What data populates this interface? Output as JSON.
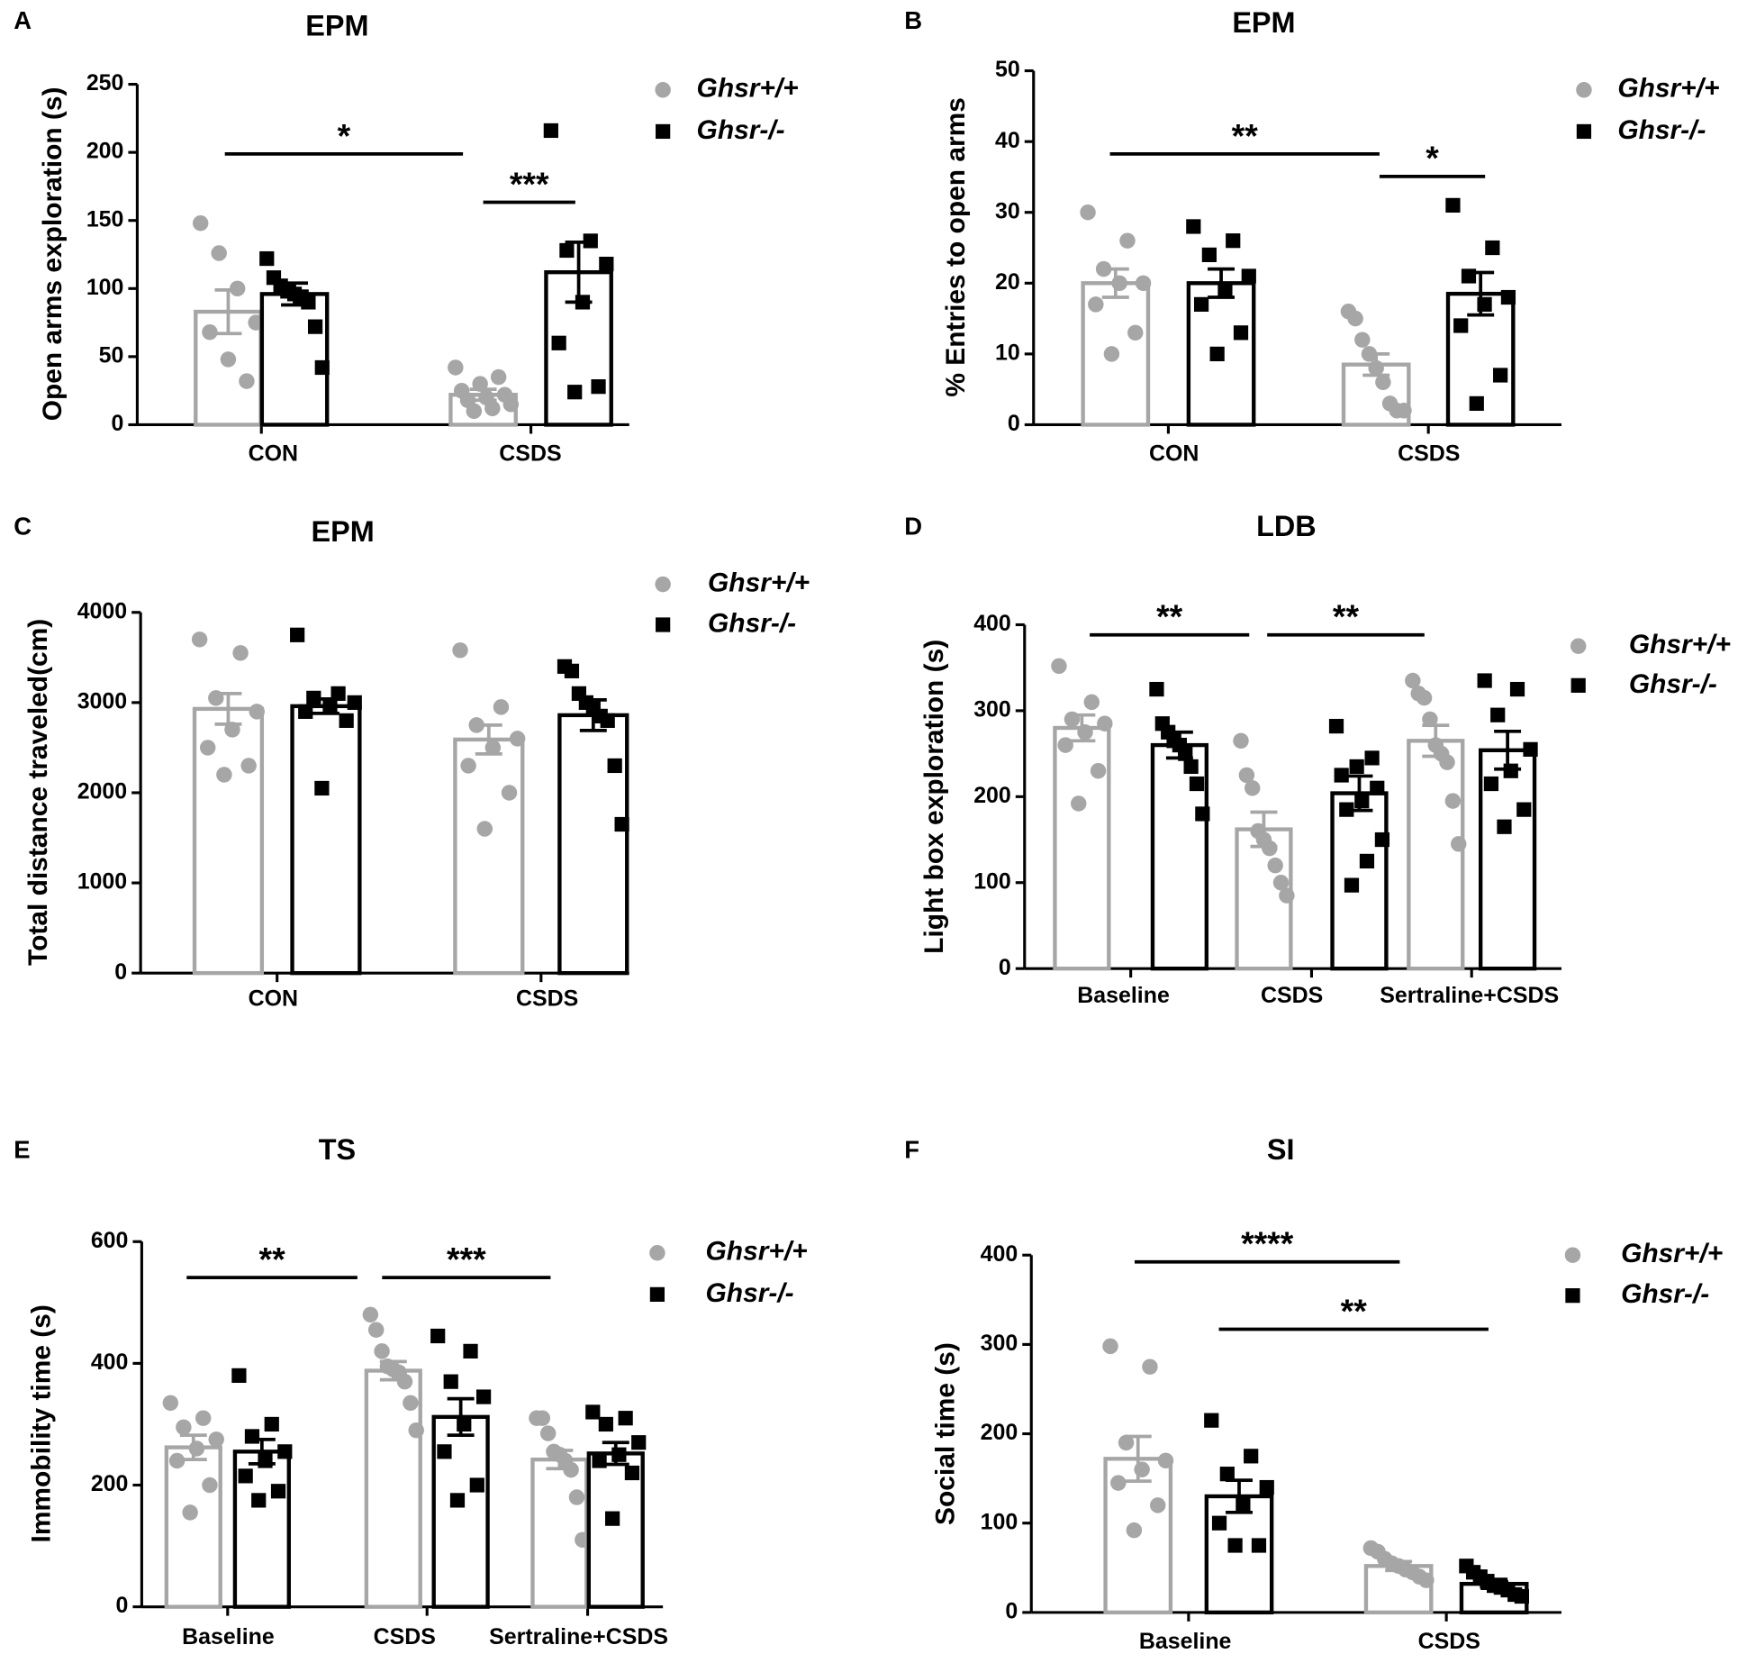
{
  "chart_data": [
    {
      "panel": "A",
      "type": "bar",
      "title": "EPM",
      "y_label": "Open arms exploration (s)",
      "categories": [
        "CON",
        "CSDS"
      ],
      "series": [
        {
          "name": "Ghsr+/+",
          "color": "#a6a6a6",
          "values": [
            83,
            22
          ],
          "errors": [
            16,
            4
          ],
          "points": [
            [
              148,
              126,
              100,
              75,
              68,
              48,
              32
            ],
            [
              42,
              35,
              30,
              25,
              22,
              20,
              18,
              15,
              12,
              10
            ]
          ]
        },
        {
          "name": "Ghsr-/-",
          "color": "#000000",
          "values": [
            96,
            112
          ],
          "errors": [
            8,
            22
          ],
          "points": [
            [
              122,
              108,
              102,
              98,
              96,
              94,
              90,
              72,
              42
            ],
            [
              216,
              135,
              128,
              118,
              90,
              60,
              28,
              24
            ]
          ]
        }
      ],
      "ylim": [
        0,
        250
      ],
      "yticks": [
        0,
        50,
        100,
        150,
        200,
        250
      ],
      "annotations": [
        "*",
        "***"
      ]
    },
    {
      "panel": "B",
      "type": "bar",
      "title": "EPM",
      "y_label": "% Entries to open arms",
      "categories": [
        "CON",
        "CSDS"
      ],
      "series": [
        {
          "name": "Ghsr+/+",
          "color": "#a6a6a6",
          "values": [
            20,
            8.5
          ],
          "errors": [
            2,
            1.5
          ],
          "points": [
            [
              30,
              26,
              22,
              20,
              20,
              17,
              13,
              10
            ],
            [
              16,
              15,
              12,
              10,
              8,
              6,
              3,
              2,
              2
            ]
          ]
        },
        {
          "name": "Ghsr-/-",
          "color": "#000000",
          "values": [
            20,
            18.5
          ],
          "errors": [
            2,
            3
          ],
          "points": [
            [
              28,
              26,
              24,
              21,
              19,
              17,
              13,
              10
            ],
            [
              31,
              25,
              21,
              18,
              17,
              14,
              7,
              3
            ]
          ]
        }
      ],
      "ylim": [
        0,
        50
      ],
      "yticks": [
        0,
        10,
        20,
        30,
        40,
        50
      ],
      "annotations": [
        "**",
        "*"
      ]
    },
    {
      "panel": "C",
      "type": "bar",
      "title": "EPM",
      "y_label": "Total distance traveled(cm)",
      "categories": [
        "CON",
        "CSDS"
      ],
      "series": [
        {
          "name": "Ghsr+/+",
          "color": "#a6a6a6",
          "values": [
            2930,
            2590
          ],
          "errors": [
            170,
            160
          ],
          "points": [
            [
              3700,
              3550,
              3050,
              2900,
              2700,
              2500,
              2300,
              2200
            ],
            [
              3580,
              2950,
              2750,
              2600,
              2500,
              2300,
              2000,
              1600
            ]
          ]
        },
        {
          "name": "Ghsr-/-",
          "color": "#000000",
          "values": [
            2960,
            2860
          ],
          "errors": [
            80,
            170
          ],
          "points": [
            [
              3750,
              3100,
              3050,
              3000,
              2950,
              2900,
              2800,
              2050
            ],
            [
              3400,
              3350,
              3100,
              3000,
              2950,
              2850,
              2800,
              2300,
              1650
            ]
          ]
        }
      ],
      "ylim": [
        0,
        4000
      ],
      "yticks": [
        0,
        1000,
        2000,
        3000,
        4000
      ],
      "annotations": []
    },
    {
      "panel": "D",
      "type": "bar",
      "title": "LDB",
      "y_label": "Light box exploration (s)",
      "categories": [
        "Baseline",
        "CSDS",
        "Sertraline+CSDS"
      ],
      "series": [
        {
          "name": "Ghsr+/+",
          "color": "#a6a6a6",
          "values": [
            280,
            162,
            265
          ],
          "errors": [
            15,
            20,
            18
          ],
          "points": [
            [
              352,
              310,
              290,
              285,
              275,
              260,
              230,
              192
            ],
            [
              265,
              225,
              210,
              160,
              150,
              140,
              120,
              100,
              85
            ],
            [
              335,
              320,
              315,
              290,
              260,
              250,
              240,
              195,
              145
            ]
          ]
        },
        {
          "name": "Ghsr-/-",
          "color": "#000000",
          "values": [
            260,
            204,
            254
          ],
          "errors": [
            15,
            20,
            22
          ],
          "points": [
            [
              325,
              285,
              275,
              265,
              260,
              250,
              235,
              215,
              180
            ],
            [
              282,
              245,
              235,
              225,
              210,
              195,
              185,
              150,
              125,
              97
            ],
            [
              335,
              325,
              295,
              255,
              230,
              215,
              185,
              165
            ]
          ]
        }
      ],
      "ylim": [
        0,
        400
      ],
      "yticks": [
        0,
        100,
        200,
        300,
        400
      ],
      "annotations": [
        "**",
        "**"
      ]
    },
    {
      "panel": "E",
      "type": "bar",
      "title": "TS",
      "y_label": "Immobility time (s)",
      "categories": [
        "Baseline",
        "CSDS",
        "Sertraline+CSDS"
      ],
      "series": [
        {
          "name": "Ghsr+/+",
          "color": "#a6a6a6",
          "values": [
            262,
            388,
            242
          ],
          "errors": [
            20,
            15,
            15
          ],
          "points": [
            [
              335,
              310,
              295,
              275,
              260,
              240,
              200,
              155
            ],
            [
              480,
              455,
              420,
              395,
              390,
              385,
              370,
              335,
              290
            ],
            [
              310,
              310,
              285,
              255,
              250,
              240,
              225,
              180,
              110
            ]
          ]
        },
        {
          "name": "Ghsr-/-",
          "color": "#000000",
          "values": [
            255,
            312,
            252
          ],
          "errors": [
            20,
            30,
            18
          ],
          "points": [
            [
              380,
              300,
              280,
              255,
              240,
              215,
              190,
              175
            ],
            [
              445,
              420,
              370,
              345,
              300,
              255,
              200,
              175
            ],
            [
              320,
              310,
              300,
              270,
              250,
              240,
              220,
              145
            ]
          ]
        }
      ],
      "ylim": [
        0,
        600
      ],
      "yticks": [
        0,
        200,
        400,
        600
      ],
      "annotations": [
        "**",
        "***"
      ]
    },
    {
      "panel": "F",
      "type": "bar",
      "title": "SI",
      "y_label": "Social time (s)",
      "categories": [
        "Baseline",
        "CSDS"
      ],
      "series": [
        {
          "name": "Ghsr+/+",
          "color": "#a6a6a6",
          "values": [
            172,
            52
          ],
          "errors": [
            25,
            5
          ],
          "points": [
            [
              298,
              275,
              190,
              170,
              160,
              145,
              120,
              92
            ],
            [
              72,
              68,
              60,
              55,
              52,
              48,
              45,
              40,
              36
            ]
          ]
        },
        {
          "name": "Ghsr-/-",
          "color": "#000000",
          "values": [
            130,
            32
          ],
          "errors": [
            18,
            5
          ],
          "points": [
            [
              215,
              175,
              155,
              140,
              120,
              100,
              75,
              75
            ],
            [
              52,
              45,
              40,
              35,
              30,
              28,
              25,
              20,
              18
            ]
          ]
        }
      ],
      "ylim": [
        0,
        400
      ],
      "yticks": [
        0,
        100,
        200,
        300,
        400
      ],
      "annotations": [
        "****",
        "**"
      ]
    }
  ]
}
